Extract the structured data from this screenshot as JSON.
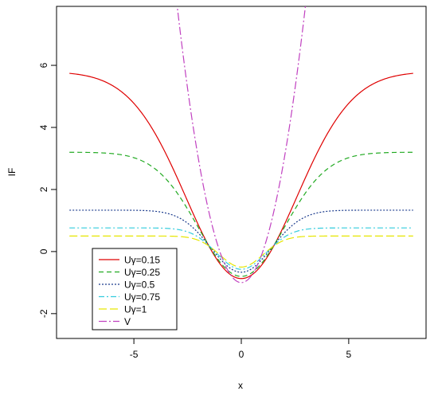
{
  "chart_data": {
    "type": "line",
    "title": "",
    "xlabel": "x",
    "ylabel": "IF",
    "xlim": [
      -8.6,
      8.6
    ],
    "ylim": [
      -2.8,
      7.9
    ],
    "x_ticks": [
      {
        "value": -5,
        "label": "-5"
      },
      {
        "value": 0,
        "label": "0"
      },
      {
        "value": 5,
        "label": "5"
      }
    ],
    "y_ticks": [
      {
        "value": -2,
        "label": "-2"
      },
      {
        "value": 0,
        "label": "0"
      },
      {
        "value": 2,
        "label": "2"
      },
      {
        "value": 4,
        "label": "4"
      },
      {
        "value": 6,
        "label": "6"
      }
    ],
    "grid": false,
    "legend_position": "bottom-left",
    "x_range": [
      -8,
      8
    ],
    "series": [
      {
        "name": "Uγ=0.15",
        "gamma": 0.15,
        "color": "#DF0000",
        "dash": ""
      },
      {
        "name": "Uγ=0.25",
        "gamma": 0.25,
        "color": "#22AA22",
        "dash": "6,4"
      },
      {
        "name": "Uγ=0.5",
        "gamma": 0.5,
        "color": "#1A3A8C",
        "dash": "2,2"
      },
      {
        "name": "Uγ=0.75",
        "gamma": 0.75,
        "color": "#33CCDD",
        "dash": "7,3,2,3"
      },
      {
        "name": "Uγ=1",
        "gamma": 1.0,
        "color": "#E6E600",
        "dash": "10,4"
      },
      {
        "name": "V",
        "gamma": null,
        "color": "#C040C0",
        "dash": "10,3,2,3"
      }
    ]
  }
}
